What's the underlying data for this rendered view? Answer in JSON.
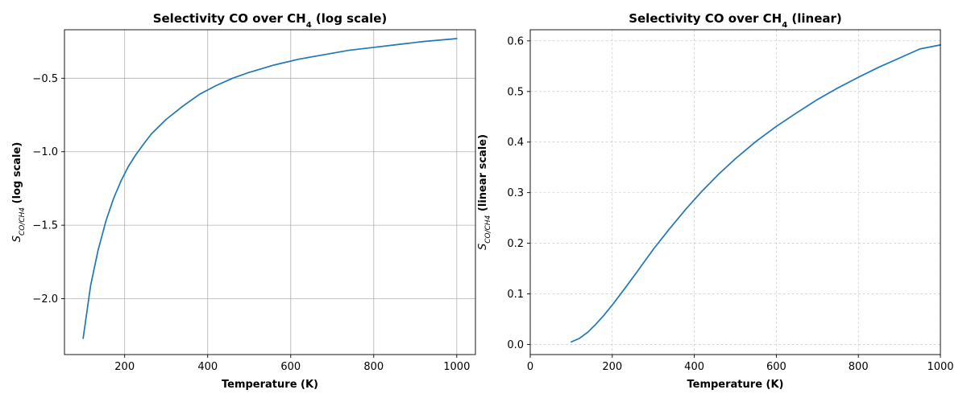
{
  "chart_data": [
    {
      "type": "line",
      "title_main": "Selectivity CO over CH",
      "title_sub": "4",
      "title_tail": " (log scale)",
      "xlabel": "Temperature (K)",
      "ylabel_sym": "S",
      "ylabel_sub": "CO/CH4",
      "ylabel_tail": "  (log scale)",
      "xlim": [
        55,
        1045
      ],
      "ylim": [
        -2.38,
        -0.17
      ],
      "xticks": [
        200,
        400,
        600,
        800,
        1000
      ],
      "xtick_labels": [
        "200",
        "400",
        "600",
        "800",
        "1000"
      ],
      "yticks": [
        -2.0,
        -1.5,
        -1.0,
        -0.5
      ],
      "ytick_labels": [
        "−2.0",
        "−1.5",
        "−1.0",
        "−0.5"
      ],
      "grid": "solid",
      "color": "#1f77b4",
      "series": [
        {
          "x": [
            100,
            118,
            136,
            155,
            173,
            191,
            209,
            227,
            245,
            264,
            282,
            300,
            340,
            380,
            420,
            460,
            500,
            560,
            620,
            680,
            740,
            800,
            860,
            920,
            1000
          ],
          "values": [
            -2.27,
            -1.91,
            -1.67,
            -1.47,
            -1.32,
            -1.2,
            -1.1,
            -1.02,
            -0.95,
            -0.88,
            -0.83,
            -0.78,
            -0.69,
            -0.61,
            -0.55,
            -0.5,
            -0.46,
            -0.41,
            -0.37,
            -0.34,
            -0.31,
            -0.29,
            -0.27,
            -0.25,
            -0.23
          ]
        }
      ]
    },
    {
      "type": "line",
      "title_main": "Selectivity CO over CH",
      "title_sub": "4",
      "title_tail": " (linear)",
      "xlabel": "Temperature (K)",
      "ylabel_sym": "S",
      "ylabel_sub": "CO/CH4",
      "ylabel_tail": "  (linear scale)",
      "xlim": [
        0,
        1000
      ],
      "ylim": [
        -0.02,
        0.622
      ],
      "xticks": [
        0,
        200,
        400,
        600,
        800,
        1000
      ],
      "xtick_labels": [
        "0",
        "200",
        "400",
        "600",
        "800",
        "1000"
      ],
      "yticks": [
        0.0,
        0.1,
        0.2,
        0.3,
        0.4,
        0.5,
        0.6
      ],
      "ytick_labels": [
        "0.0",
        "0.1",
        "0.2",
        "0.3",
        "0.4",
        "0.5",
        "0.6"
      ],
      "grid": "dashed",
      "color": "#1f77b4",
      "series": [
        {
          "x": [
            100,
            120,
            140,
            160,
            180,
            200,
            230,
            260,
            300,
            340,
            380,
            420,
            460,
            500,
            550,
            600,
            650,
            700,
            750,
            800,
            850,
            900,
            950,
            1000
          ],
          "values": [
            0.005,
            0.012,
            0.024,
            0.04,
            0.058,
            0.078,
            0.11,
            0.143,
            0.188,
            0.229,
            0.268,
            0.304,
            0.337,
            0.367,
            0.401,
            0.431,
            0.458,
            0.484,
            0.507,
            0.528,
            0.548,
            0.566,
            0.584,
            0.592
          ]
        }
      ]
    }
  ]
}
